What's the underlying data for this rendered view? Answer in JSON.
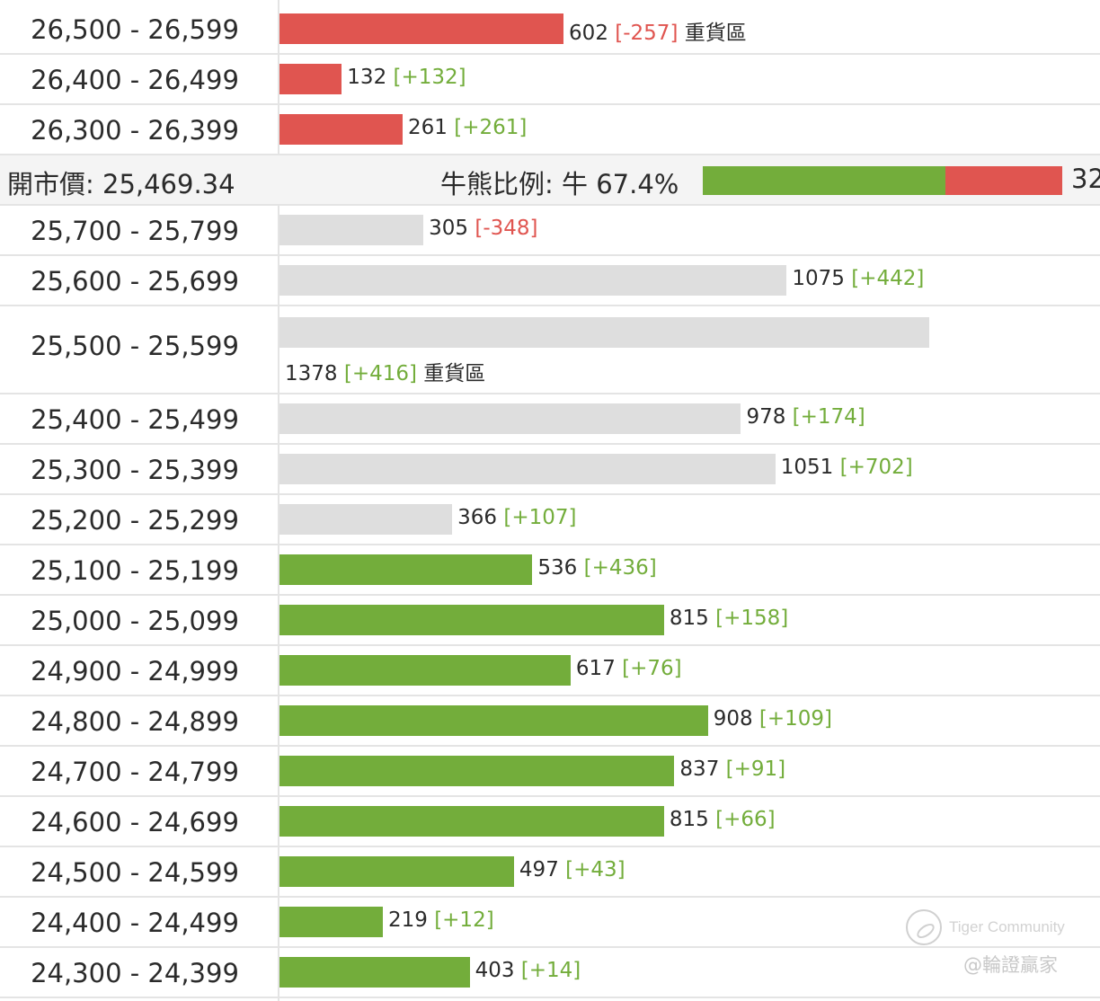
{
  "chart_data": {
    "type": "bar",
    "orientation": "horizontal",
    "xlim": [
      0,
      1500
    ],
    "colors": {
      "bear": "#e05550",
      "neutral": "#dedede",
      "bull": "#73ad3b",
      "positive_change": "#73ad3b",
      "negative_change": "#e05550"
    },
    "bear_rows": [
      {
        "range": "26,500 - 26,599",
        "value": 602,
        "change": "[-257]",
        "note": "重貨區"
      },
      {
        "range": "26,400 - 26,499",
        "value": 132,
        "change": "[+132]",
        "note": ""
      },
      {
        "range": "26,300 - 26,399",
        "value": 261,
        "change": "[+261]",
        "note": ""
      }
    ],
    "summary": {
      "open_label": "開市價: 25,469.34",
      "ratio_label": "牛熊比例: 牛 67.4%",
      "bull_pct": 67.4,
      "bear_count_visible": "32"
    },
    "bull_rows": [
      {
        "range": "25,700 - 25,799",
        "value": 305,
        "change": "[-348]",
        "note": "",
        "color": "neutral"
      },
      {
        "range": "25,600 - 25,699",
        "value": 1075,
        "change": "[+442]",
        "note": "",
        "color": "neutral"
      },
      {
        "range": "25,500 - 25,599",
        "value": 1378,
        "change": "[+416]",
        "note": "重貨區",
        "color": "neutral"
      },
      {
        "range": "25,400 - 25,499",
        "value": 978,
        "change": "[+174]",
        "note": "",
        "color": "neutral"
      },
      {
        "range": "25,300 - 25,399",
        "value": 1051,
        "change": "[+702]",
        "note": "",
        "color": "neutral"
      },
      {
        "range": "25,200 - 25,299",
        "value": 366,
        "change": "[+107]",
        "note": "",
        "color": "neutral"
      },
      {
        "range": "25,100 - 25,199",
        "value": 536,
        "change": "[+436]",
        "note": "",
        "color": "bull"
      },
      {
        "range": "25,000 - 25,099",
        "value": 815,
        "change": "[+158]",
        "note": "",
        "color": "bull"
      },
      {
        "range": "24,900 - 24,999",
        "value": 617,
        "change": "[+76]",
        "note": "",
        "color": "bull"
      },
      {
        "range": "24,800 - 24,899",
        "value": 908,
        "change": "[+109]",
        "note": "",
        "color": "bull"
      },
      {
        "range": "24,700 - 24,799",
        "value": 837,
        "change": "[+91]",
        "note": "",
        "color": "bull"
      },
      {
        "range": "24,600 - 24,699",
        "value": 815,
        "change": "[+66]",
        "note": "",
        "color": "bull"
      },
      {
        "range": "24,500 - 24,599",
        "value": 497,
        "change": "[+43]",
        "note": "",
        "color": "bull"
      },
      {
        "range": "24,400 - 24,499",
        "value": 219,
        "change": "[+12]",
        "note": "",
        "color": "bull"
      },
      {
        "range": "24,300 - 24,399",
        "value": 403,
        "change": "[+14]",
        "note": "",
        "color": "bull"
      }
    ]
  },
  "watermark": {
    "brand": "Tiger Community",
    "handle": "@輪證贏家",
    "icon": "tiger-community-logo-icon"
  }
}
